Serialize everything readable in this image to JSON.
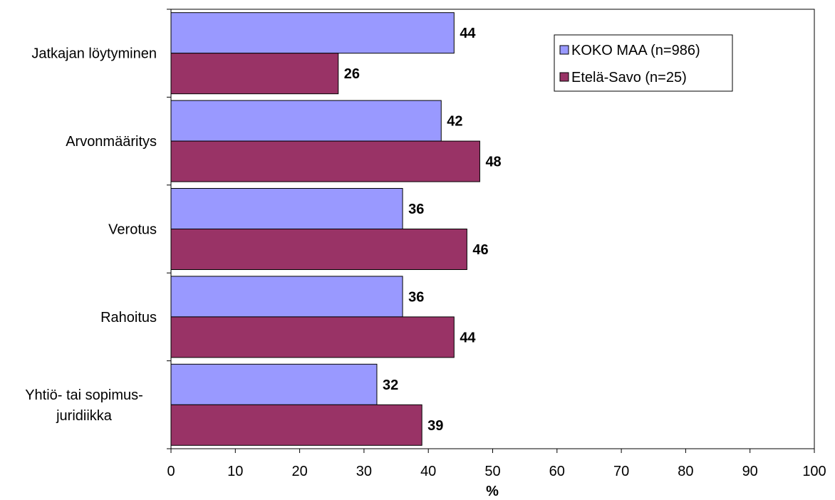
{
  "chart_data": {
    "type": "bar",
    "orientation": "horizontal",
    "categories": [
      [
        "Jatkajan löytyminen"
      ],
      [
        "Arvonmääritys"
      ],
      [
        "Verotus"
      ],
      [
        "Rahoitus"
      ],
      [
        "Yhtiö- tai sopimus-",
        "juridiikka"
      ]
    ],
    "series": [
      {
        "name": "KOKO MAA (n=986)",
        "color": "#9999ff",
        "values": [
          44,
          42,
          36,
          36,
          32
        ]
      },
      {
        "name": "Etelä-Savo (n=25)",
        "color": "#993366",
        "values": [
          26,
          48,
          46,
          44,
          39
        ]
      }
    ],
    "xlabel": "%",
    "xlim": [
      0,
      100
    ],
    "xticks": [
      0,
      10,
      20,
      30,
      40,
      50,
      60,
      70,
      80,
      90,
      100
    ],
    "grid": false,
    "legend_position": "top-right",
    "data_labels": true
  }
}
